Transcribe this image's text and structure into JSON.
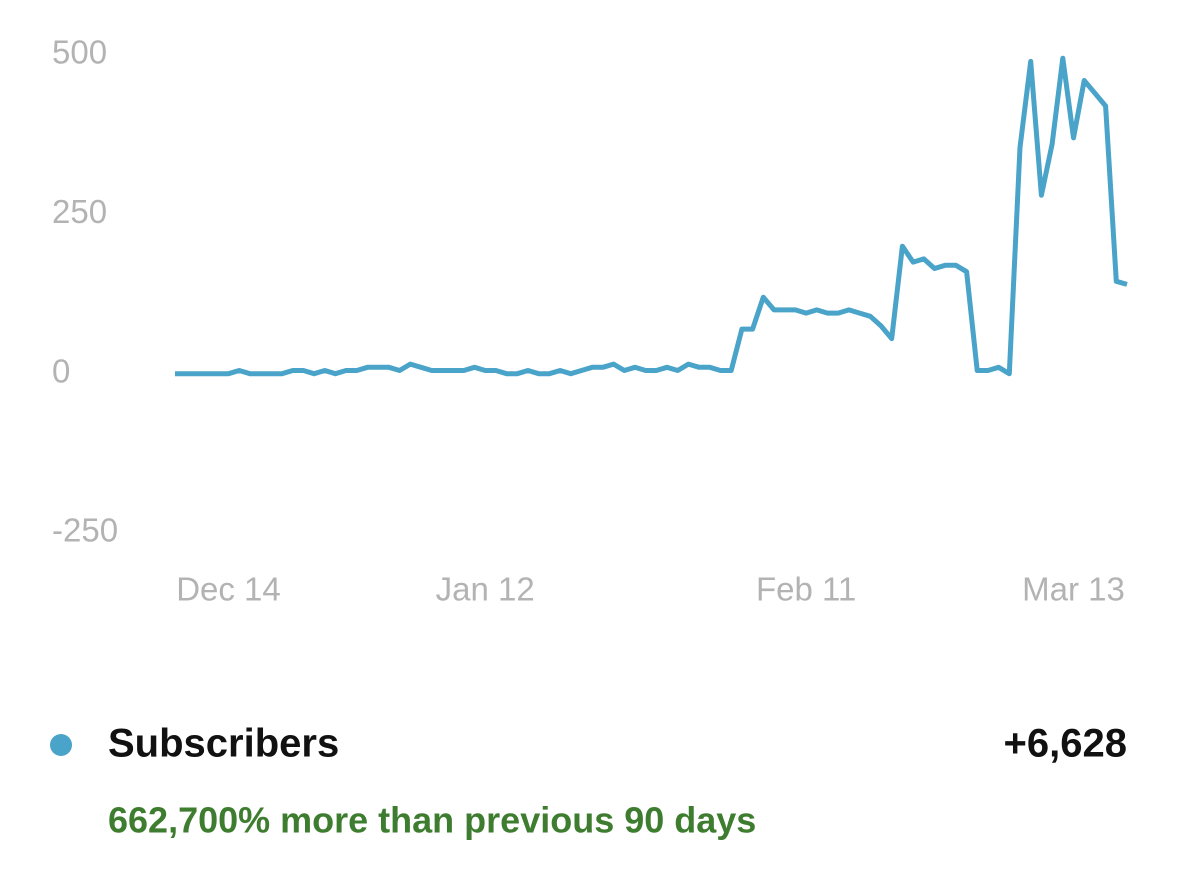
{
  "chart_data": {
    "type": "line",
    "categories": [
      null,
      null,
      null,
      null,
      null,
      "Dec 14",
      null,
      null,
      null,
      null,
      null,
      null,
      null,
      null,
      null,
      null,
      null,
      null,
      null,
      null,
      null,
      null,
      null,
      null,
      null,
      null,
      null,
      null,
      null,
      "Jan 12",
      null,
      null,
      null,
      null,
      null,
      null,
      null,
      null,
      null,
      null,
      null,
      null,
      null,
      null,
      null,
      null,
      null,
      null,
      null,
      null,
      null,
      null,
      null,
      null,
      null,
      null,
      null,
      null,
      null,
      "Feb 11",
      null,
      null,
      null,
      null,
      null,
      null,
      null,
      null,
      null,
      null,
      null,
      null,
      null,
      null,
      null,
      null,
      null,
      null,
      null,
      null,
      null,
      null,
      null,
      null,
      "Mar 13",
      null,
      null,
      null,
      null,
      null
    ],
    "series": [
      {
        "name": "Subscribers",
        "color": "#4aa3c9",
        "values": [
          0,
          0,
          0,
          0,
          0,
          0,
          5,
          0,
          0,
          0,
          0,
          5,
          5,
          0,
          5,
          0,
          5,
          5,
          10,
          10,
          10,
          5,
          15,
          10,
          5,
          5,
          5,
          5,
          10,
          5,
          5,
          0,
          0,
          5,
          0,
          0,
          5,
          0,
          5,
          10,
          10,
          15,
          5,
          10,
          5,
          5,
          10,
          5,
          15,
          10,
          10,
          5,
          5,
          70,
          70,
          120,
          100,
          100,
          100,
          95,
          100,
          95,
          95,
          100,
          95,
          90,
          75,
          55,
          200,
          175,
          180,
          165,
          170,
          170,
          160,
          5,
          5,
          10,
          0,
          355,
          490,
          280,
          360,
          495,
          370,
          460,
          440,
          420,
          145,
          140
        ]
      }
    ],
    "ylim": [
      -250,
      500
    ],
    "yticks": [
      500,
      250,
      0,
      -250
    ],
    "grid": false,
    "summary": {
      "total": "+6,628",
      "comparison": "662,700% more than previous 90 days",
      "comparison_color": "#3e7d2f"
    }
  }
}
